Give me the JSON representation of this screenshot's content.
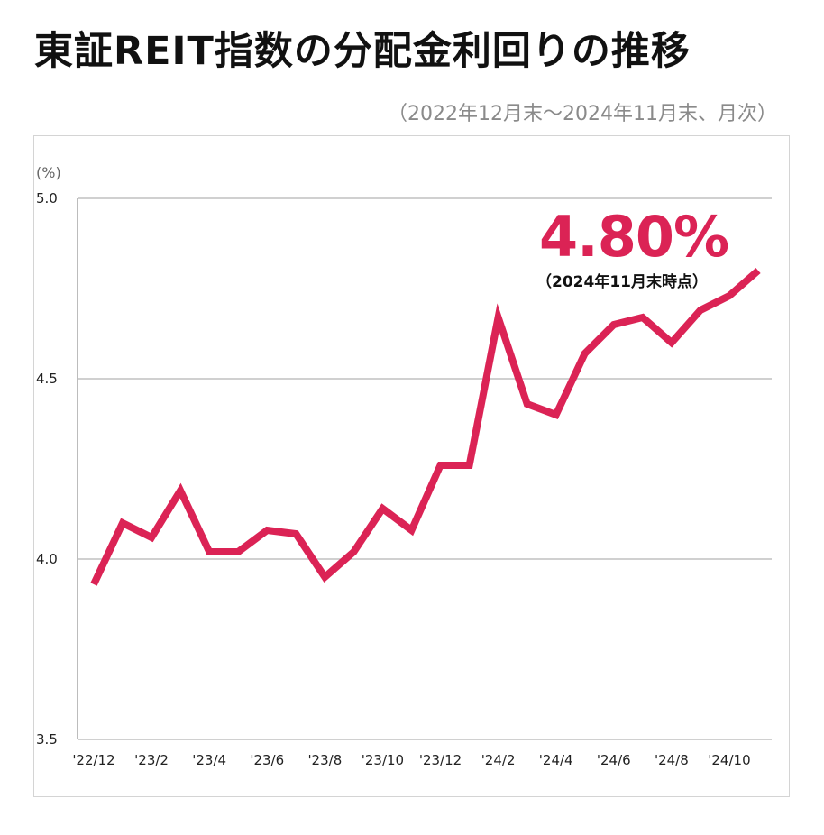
{
  "title": "東証REIT指数の分配金利回りの推移",
  "subtitle": "（2022年12月末〜2024年11月末、月次）",
  "callout": {
    "value": "4.80%",
    "note": "（2024年11月末時点）"
  },
  "colors": {
    "line": "#db2355",
    "grid": "#b5b5b5",
    "axis": "#999999"
  },
  "chart_data": {
    "type": "line",
    "ylabel": "(%)",
    "ylim": [
      3.5,
      5.0
    ],
    "yticks": [
      "5.0",
      "4.5",
      "4.0",
      "3.5"
    ],
    "ytick_values": [
      5.0,
      4.5,
      4.0,
      3.5
    ],
    "grid": true,
    "x": [
      "'22/12",
      "'23/1",
      "'23/2",
      "'23/3",
      "'23/4",
      "'23/5",
      "'23/6",
      "'23/7",
      "'23/8",
      "'23/9",
      "'23/10",
      "'23/11",
      "'23/12",
      "'24/1",
      "'24/2",
      "'24/3",
      "'24/4",
      "'24/5",
      "'24/6",
      "'24/7",
      "'24/8",
      "'24/9",
      "'24/10",
      "'24/11"
    ],
    "xtick_labels": [
      "'22/12",
      "'23/2",
      "'23/4",
      "'23/6",
      "'23/8",
      "'23/10",
      "'23/12",
      "'24/2",
      "'24/4",
      "'24/6",
      "'24/8",
      "'24/10"
    ],
    "xtick_indices": [
      0,
      2,
      4,
      6,
      8,
      10,
      12,
      14,
      16,
      18,
      20,
      22
    ],
    "series": [
      {
        "values": [
          3.93,
          4.1,
          4.06,
          4.19,
          4.02,
          4.02,
          4.08,
          4.07,
          3.95,
          4.02,
          4.14,
          4.08,
          4.26,
          4.26,
          4.67,
          4.43,
          4.4,
          4.57,
          4.65,
          4.67,
          4.6,
          4.69,
          4.73,
          4.8
        ]
      }
    ]
  }
}
